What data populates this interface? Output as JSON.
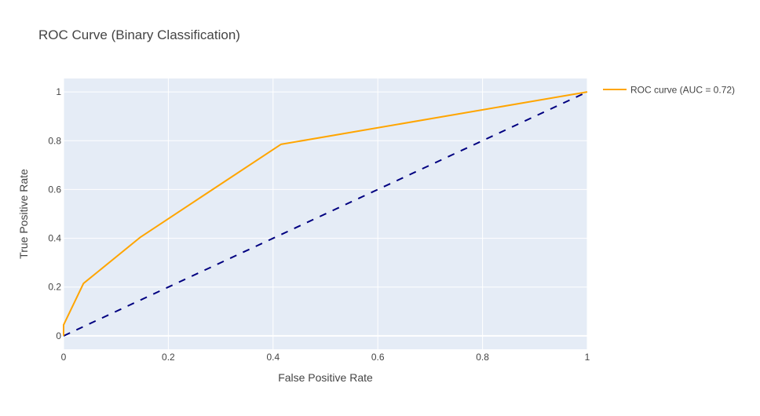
{
  "chart_data": {
    "type": "line",
    "title": "ROC Curve (Binary Classification)",
    "xlabel": "False Positive Rate",
    "ylabel": "True Positive Rate",
    "xlim": [
      0,
      1
    ],
    "ylim": [
      -0.055,
      1.055
    ],
    "xticks": [
      0,
      0.2,
      0.4,
      0.6,
      0.8,
      1
    ],
    "xtick_labels": [
      "0",
      "0.2",
      "0.4",
      "0.6",
      "0.8",
      "1"
    ],
    "yticks": [
      0,
      0.2,
      0.4,
      0.6,
      0.8,
      1
    ],
    "ytick_labels": [
      "0",
      "0.2",
      "0.4",
      "0.6",
      "0.8",
      "1"
    ],
    "grid": true,
    "legend_position": "top-right-outside",
    "plot_background": "#e5ecf6",
    "series": [
      {
        "name": "ROC curve (AUC = 0.72)",
        "color": "#ffa500",
        "dash": "solid",
        "x": [
          0,
          0.0,
          0.038,
          0.147,
          0.415,
          1.0
        ],
        "y": [
          0,
          0.045,
          0.215,
          0.405,
          0.785,
          1.0
        ]
      },
      {
        "color": "#000080",
        "dash": "dashed",
        "x": [
          0,
          1
        ],
        "y": [
          0,
          1
        ]
      }
    ]
  }
}
